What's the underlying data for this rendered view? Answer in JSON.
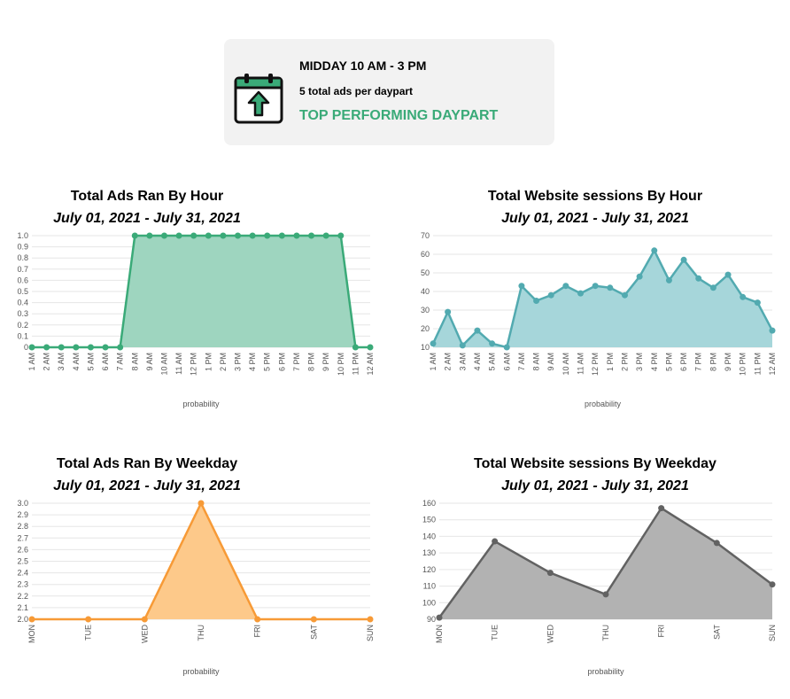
{
  "summary": {
    "title": "MIDDAY 10 AM - 3 PM",
    "subtitle": "5 total ads per daypart",
    "tag": "TOP PERFORMING DAYPART",
    "icon": "calendar-up-icon",
    "accent": "#3aaa78"
  },
  "chart_data": [
    {
      "type": "area",
      "title": "Total Ads Ran By Hour",
      "subtitle": "July 01, 2021 - July 31, 2021",
      "xlabel": "probability",
      "ylabel": "",
      "categories": [
        "1 AM",
        "2 AM",
        "3 AM",
        "4 AM",
        "5 AM",
        "6 AM",
        "7 AM",
        "8 AM",
        "9 AM",
        "10 AM",
        "11 AM",
        "12 PM",
        "1 PM",
        "2 PM",
        "3 PM",
        "4 PM",
        "5 PM",
        "6 PM",
        "7 PM",
        "8 PM",
        "9 PM",
        "10 PM",
        "11 PM",
        "12 AM"
      ],
      "values": [
        0,
        0,
        0,
        0,
        0,
        0,
        0,
        1,
        1,
        1,
        1,
        1,
        1,
        1,
        1,
        1,
        1,
        1,
        1,
        1,
        1,
        1,
        0,
        0
      ],
      "ylim": [
        0,
        1
      ],
      "yticks": [
        0,
        0.1,
        0.2,
        0.3,
        0.4,
        0.5,
        0.6,
        0.7,
        0.8,
        0.9,
        1.0
      ],
      "ytick_labels": [
        "0",
        "0.1",
        "0.2",
        "0.3",
        "0.4",
        "0.5",
        "0.6",
        "0.7",
        "0.8",
        "0.9",
        "1.0"
      ],
      "color": "#3aaa78",
      "fill": "#9ed5bf",
      "grid": true
    },
    {
      "type": "area",
      "title": "Total Website sessions By Hour",
      "subtitle": "July 01, 2021 - July 31, 2021",
      "xlabel": "probability",
      "ylabel": "",
      "categories": [
        "1 AM",
        "2 AM",
        "3 AM",
        "4 AM",
        "5 AM",
        "6 AM",
        "7 AM",
        "8 AM",
        "9 AM",
        "10 AM",
        "11 AM",
        "12 PM",
        "1 PM",
        "2 PM",
        "3 PM",
        "4 PM",
        "5 PM",
        "6 PM",
        "7 PM",
        "8 PM",
        "9 PM",
        "10 PM",
        "11 PM",
        "12 AM"
      ],
      "values": [
        12,
        29,
        11,
        19,
        12,
        10,
        43,
        35,
        38,
        43,
        39,
        43,
        42,
        38,
        48,
        62,
        46,
        57,
        47,
        42,
        49,
        37,
        34,
        19
      ],
      "ylim": [
        10,
        70
      ],
      "yticks": [
        10,
        20,
        30,
        40,
        50,
        60,
        70
      ],
      "ytick_labels": [
        "10",
        "20",
        "30",
        "40",
        "50",
        "60",
        "70"
      ],
      "color": "#52aab0",
      "fill": "#a6d6da",
      "grid": true
    },
    {
      "type": "area",
      "title": "Total Ads Ran By Weekday",
      "subtitle": "July 01, 2021 - July 31, 2021",
      "xlabel": "probability",
      "ylabel": "",
      "categories": [
        "MON",
        "TUE",
        "WED",
        "THU",
        "FRI",
        "SAT",
        "SUN"
      ],
      "values": [
        2,
        2,
        2,
        3,
        2,
        2,
        2
      ],
      "ylim": [
        2,
        3
      ],
      "yticks": [
        2,
        2.1,
        2.2,
        2.3,
        2.4,
        2.5,
        2.6,
        2.7,
        2.8,
        2.9,
        3
      ],
      "ytick_labels": [
        "2.0",
        "2.1",
        "2.2",
        "2.3",
        "2.4",
        "2.5",
        "2.6",
        "2.7",
        "2.8",
        "2.9",
        "3.0"
      ],
      "color": "#f79a36",
      "fill": "#fdc98a",
      "grid": true
    },
    {
      "type": "area",
      "title": "Total Website sessions By Weekday",
      "subtitle": "July 01, 2021 - July 31, 2021",
      "xlabel": "probability",
      "ylabel": "",
      "categories": [
        "MON",
        "TUE",
        "WED",
        "THU",
        "FRI",
        "SAT",
        "SUN"
      ],
      "values": [
        91,
        137,
        118,
        105,
        157,
        136,
        111
      ],
      "ylim": [
        90,
        160
      ],
      "yticks": [
        90,
        100,
        110,
        120,
        130,
        140,
        150,
        160
      ],
      "ytick_labels": [
        "90",
        "100",
        "110",
        "120",
        "130",
        "140",
        "150",
        "160"
      ],
      "color": "#626262",
      "fill": "#b2b2b2",
      "grid": true
    }
  ]
}
